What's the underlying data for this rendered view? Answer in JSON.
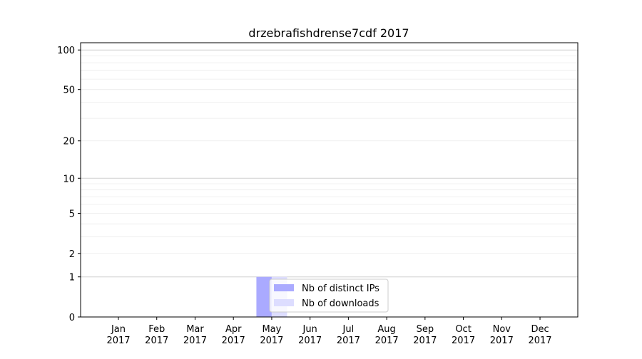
{
  "chart_data": {
    "type": "bar",
    "title": "drzebrafishdrense7cdf 2017",
    "xlabel": "",
    "ylabel": "",
    "y_scale": "log(1+y)",
    "ylim": [
      0,
      113
    ],
    "grid": true,
    "legend_placement": "lower-center",
    "categories": [
      "Jan\n2017",
      "Feb\n2017",
      "Mar\n2017",
      "Apr\n2017",
      "May\n2017",
      "Jun\n2017",
      "Jul\n2017",
      "Aug\n2017",
      "Sep\n2017",
      "Oct\n2017",
      "Nov\n2017",
      "Dec\n2017"
    ],
    "x_tick_labels": [
      [
        "Jan",
        "2017"
      ],
      [
        "Feb",
        "2017"
      ],
      [
        "Mar",
        "2017"
      ],
      [
        "Apr",
        "2017"
      ],
      [
        "May",
        "2017"
      ],
      [
        "Jun",
        "2017"
      ],
      [
        "Jul",
        "2017"
      ],
      [
        "Aug",
        "2017"
      ],
      [
        "Sep",
        "2017"
      ],
      [
        "Oct",
        "2017"
      ],
      [
        "Nov",
        "2017"
      ],
      [
        "Dec",
        "2017"
      ]
    ],
    "y_ticks": [
      0,
      1,
      2,
      5,
      10,
      20,
      50,
      100
    ],
    "y_tick_labels": [
      "0",
      "1",
      "2",
      "5",
      "10",
      "20",
      "50",
      "100"
    ],
    "series": [
      {
        "name": "Nb of distinct IPs",
        "color": "#aaaaff",
        "values": [
          0,
          0,
          0,
          0,
          1,
          0,
          0,
          0,
          0,
          0,
          0,
          0
        ]
      },
      {
        "name": "Nb of downloads",
        "color": "#ddddff",
        "values": [
          0,
          0,
          0,
          0,
          1,
          0,
          0,
          0,
          0,
          0,
          0,
          0
        ]
      }
    ]
  }
}
